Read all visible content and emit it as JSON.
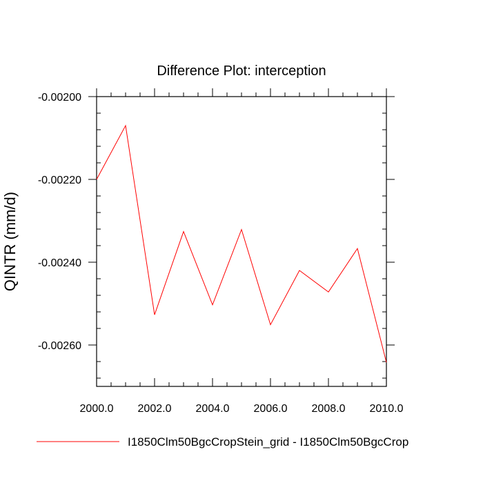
{
  "chart_data": {
    "type": "line",
    "title": "Difference Plot: interception",
    "xlabel": "",
    "ylabel": "QINTR  (mm/d)",
    "xlim": [
      2000,
      2010
    ],
    "ylim": [
      -0.0027,
      -0.002
    ],
    "xticks": [
      2000,
      2002,
      2004,
      2006,
      2008,
      2010
    ],
    "xtick_labels": [
      "2000.0",
      "2002.0",
      "2004.0",
      "2006.0",
      "2008.0",
      "2010.0"
    ],
    "yticks": [
      -0.002,
      -0.0022,
      -0.0024,
      -0.0026
    ],
    "ytick_labels": [
      "-0.00200",
      "-0.00220",
      "-0.00240",
      "-0.00260"
    ],
    "grid": false,
    "legend_position": "bottom",
    "series": [
      {
        "name": "I1850Clm50BgcCropStein_grid - I1850Clm50BgcCrop",
        "color": "#ff0000",
        "x": [
          2000,
          2001,
          2002,
          2003,
          2004,
          2005,
          2006,
          2007,
          2008,
          2009,
          2010
        ],
        "y": [
          -0.0022,
          -0.00207,
          -0.002527,
          -0.002326,
          -0.002503,
          -0.002321,
          -0.002551,
          -0.00242,
          -0.002472,
          -0.002367,
          -0.002642
        ]
      }
    ]
  }
}
